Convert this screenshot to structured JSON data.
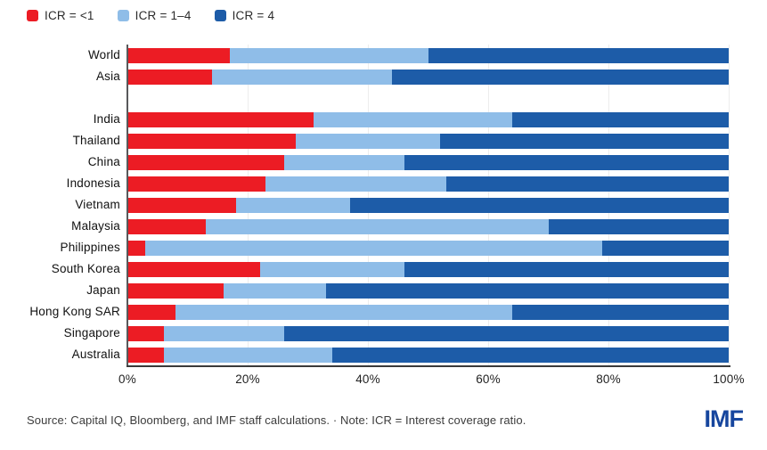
{
  "legend": [
    {
      "label": "ICR = <1",
      "color": "#ec1c24"
    },
    {
      "label": "ICR = 1–4",
      "color": "#8fbde8"
    },
    {
      "label": "ICR = 4",
      "color": "#1d5ca8"
    }
  ],
  "chart_data": {
    "type": "bar",
    "orientation": "horizontal",
    "stacked": true,
    "unit": "percent",
    "xlim": [
      0,
      100
    ],
    "x_ticks": [
      "0%",
      "20%",
      "40%",
      "60%",
      "80%",
      "100%"
    ],
    "grid": "vertical-faint",
    "legend_position": "top-left",
    "group_break_after": "Asia",
    "categories": [
      "World",
      "Asia",
      "India",
      "Thailand",
      "China",
      "Indonesia",
      "Vietnam",
      "Malaysia",
      "Philippines",
      "South Korea",
      "Japan",
      "Hong Kong SAR",
      "Singapore",
      "Australia"
    ],
    "series": [
      {
        "name": "ICR = <1",
        "color": "#ec1c24",
        "values": [
          17,
          14,
          31,
          28,
          26,
          23,
          18,
          13,
          3,
          22,
          16,
          8,
          6,
          6
        ]
      },
      {
        "name": "ICR = 1–4",
        "color": "#8fbde8",
        "values": [
          33,
          30,
          33,
          24,
          20,
          30,
          19,
          57,
          76,
          24,
          17,
          56,
          20,
          28
        ]
      },
      {
        "name": "ICR = 4",
        "color": "#1d5ca8",
        "values": [
          50,
          56,
          36,
          48,
          54,
          47,
          63,
          30,
          21,
          54,
          67,
          36,
          74,
          66
        ]
      }
    ]
  },
  "footer": {
    "source_note": "Source: Capital IQ, Bloomberg, and IMF staff calculations. · Note: ICR = Interest coverage ratio.",
    "logo_text": "IMF"
  }
}
